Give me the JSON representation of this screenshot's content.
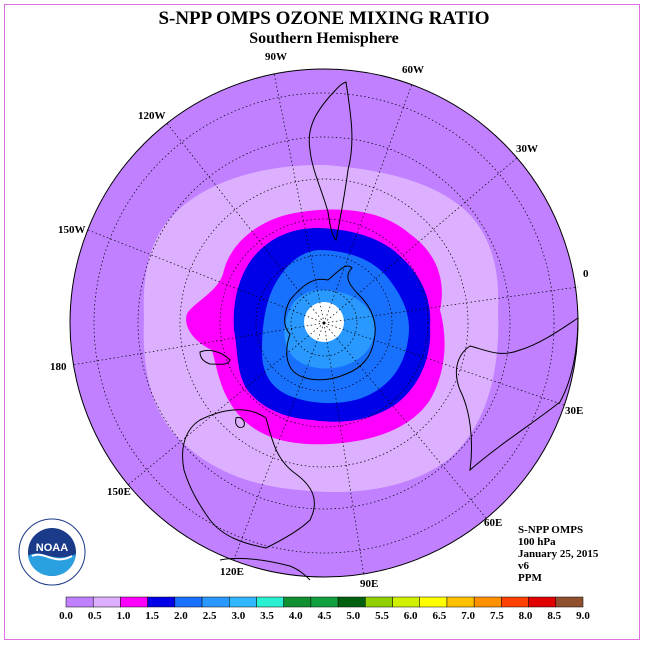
{
  "header": {
    "title": "S-NPP OMPS OZONE MIXING RATIO",
    "subtitle": "Southern Hemisphere"
  },
  "map": {
    "projection": "south-polar-stereographic",
    "longitude_labels": [
      "90W",
      "60W",
      "30W",
      "0",
      "30E",
      "60E",
      "90E",
      "120E",
      "150E",
      "180",
      "150W",
      "120W"
    ],
    "contour_bands": [
      {
        "level": "0.0-0.5",
        "color": "#c080ff"
      },
      {
        "level": "0.5-1.0",
        "color": "#ddb0ff"
      },
      {
        "level": "1.0-1.5",
        "color": "#ff00ff"
      },
      {
        "level": "1.5-2.0",
        "color": "#0000e8"
      },
      {
        "level": "2.0-2.5",
        "color": "#1870ff"
      },
      {
        "level": "2.5-3.0",
        "color": "#2a99ff"
      },
      {
        "level": "missing",
        "color": "#ffffff"
      }
    ]
  },
  "info": {
    "line1": "S-NPP OMPS",
    "line2": "100 hPa",
    "line3": "January 25, 2015",
    "line4": "v6",
    "line5": "PPM"
  },
  "logo": {
    "text": "NOAA",
    "ring_text": "NATIONAL OCEANIC AND ATMOSPHERIC ADMINISTRATION · U.S. DEPARTMENT OF COMMERCE"
  },
  "colorbar": {
    "labels": [
      "0.0",
      "0.5",
      "1.0",
      "1.5",
      "2.0",
      "2.5",
      "3.0",
      "3.5",
      "4.0",
      "4.5",
      "5.0",
      "5.5",
      "6.0",
      "6.5",
      "7.0",
      "7.5",
      "8.0",
      "8.5",
      "9.0"
    ],
    "colors": [
      "#c080ff",
      "#ddb0ff",
      "#ff00ff",
      "#0000e8",
      "#1870ff",
      "#2a99ff",
      "#30b8ff",
      "#28f0d0",
      "#109030",
      "#10a040",
      "#006010",
      "#90d000",
      "#d0f000",
      "#ffff00",
      "#ffc000",
      "#ff9000",
      "#ff4000",
      "#e00000",
      "#905030"
    ]
  }
}
